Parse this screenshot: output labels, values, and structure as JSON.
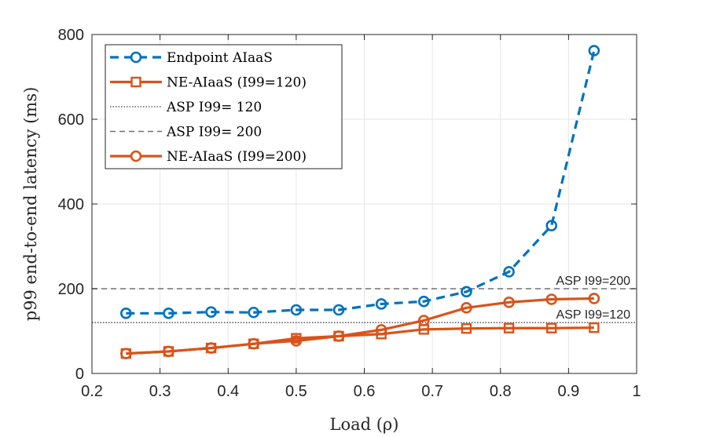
{
  "chart_data": {
    "type": "line",
    "xlabel": "Load (ρ)",
    "ylabel": "p99 end-to-end latency (ms)",
    "xlim": [
      0.2,
      1
    ],
    "ylim": [
      0,
      800
    ],
    "xticks": [
      "0.2",
      "0.3",
      "0.4",
      "0.5",
      "0.6",
      "0.7",
      "0.8",
      "0.9",
      "1"
    ],
    "yticks": [
      "0",
      "200",
      "400",
      "600",
      "800"
    ],
    "grid": true,
    "legend_position": "top-left",
    "x": [
      0.25,
      0.3125,
      0.375,
      0.4375,
      0.5,
      0.5625,
      0.625,
      0.6875,
      0.75,
      0.8125,
      0.875,
      0.9375
    ],
    "series": [
      {
        "name": "Endpoint AIaaS",
        "color": "#0072BD",
        "style": "dashed",
        "marker": "circle",
        "values": [
          142,
          142,
          145,
          144,
          150,
          150,
          164,
          170,
          193,
          240,
          349,
          762
        ]
      },
      {
        "name": "NE-AIaaS (I99=120)",
        "color": "#D95319",
        "style": "solid",
        "marker": "square",
        "values": [
          47,
          52,
          60,
          70,
          83,
          88,
          93,
          104,
          106,
          107,
          107,
          108
        ]
      },
      {
        "name": "ASP I99= 120",
        "color": "#404040",
        "style": "dotted",
        "marker": "none",
        "constant": 120
      },
      {
        "name": "ASP I99= 200",
        "color": "#707070",
        "style": "dashed",
        "marker": "none",
        "constant": 200
      },
      {
        "name": "NE-AIaaS (I99=200)",
        "color": "#D95319",
        "style": "solid",
        "marker": "circle",
        "values": [
          47,
          52,
          60,
          70,
          77,
          88,
          103,
          125,
          155,
          168,
          175,
          177
        ]
      }
    ],
    "annotations": [
      {
        "text": "ASP I99=200",
        "y": 200
      },
      {
        "text": "ASP I99=120",
        "y": 120
      }
    ]
  }
}
